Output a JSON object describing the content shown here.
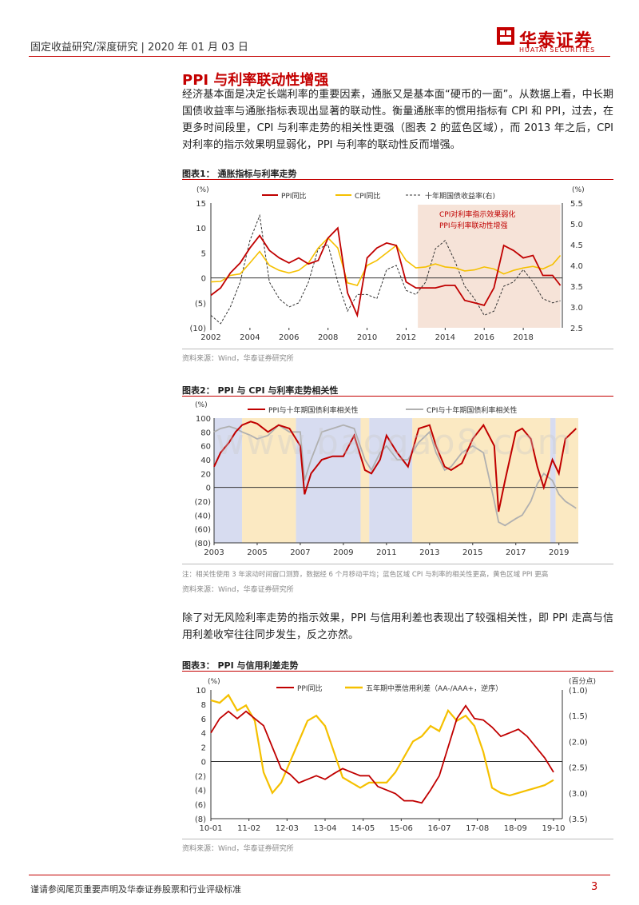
{
  "header": {
    "breadcrumb": "固定收益研究/深度研究 | 2020 年 01 月 03 日",
    "logo_cn": "华泰证券",
    "logo_en": "HUATAI SECURITIES"
  },
  "section": {
    "title": "PPI 与利率联动性增强",
    "para1": "经济基本面是决定长端利率的重要因素，通胀又是基本面“硬币的一面”。从数据上看，中长期国债收益率与通胀指标表现出显著的联动性。衡量通胀率的惯用指标有 CPI 和 PPI，过去，在更多时间段里，CPI 与利率走势的相关性更强（图表 2 的蓝色区域），而 2013 年之后，CPI 对利率的指示效果明显弱化，PPI 与利率的联动性反而增强。",
    "para2": "除了对无风险利率走势的指示效果，PPI 与信用利差也表现出了较强相关性，即 PPI 走高与信用利差收窄往往同步发生，反之亦然。"
  },
  "fig1": {
    "title": "图表1：   通胀指标与利率走势",
    "source": "资料来源：Wind，华泰证券研究所"
  },
  "fig2": {
    "title": "图表2：   PPI 与 CPI 与利率走势相关性",
    "note": "注：相关性使用 3 年滚动时间窗口测算，数据经 6 个月移动平均；蓝色区域 CPI 与利率的相关性更高，黄色区域 PPI 更高",
    "source": "资料来源：Wind，华泰证券研究所"
  },
  "fig3": {
    "title": "图表3：   PPI 与信用利差走势",
    "source": "资料来源：Wind，华泰证券研究所"
  },
  "footer": {
    "disclaimer": "谨请参阅尾页重要声明及华泰证券股票和行业评级标准",
    "page": "3"
  },
  "watermark": "www.baogao8.com",
  "colors": {
    "ppi": "#c00000",
    "cpi": "#f5c000",
    "bond": "#333333",
    "shade_warm": "#f6e3d8",
    "shade_blue": "#d7dcf0",
    "shade_yellow": "#fbe9c2",
    "accent": "#c40000"
  },
  "chart_data": [
    {
      "type": "line",
      "title": "通胀指标与利率走势",
      "left_unit": "(%)",
      "right_unit": "(%)",
      "x_ticks": [
        "2002",
        "2004",
        "2006",
        "2008",
        "2010",
        "2012",
        "2014",
        "2016",
        "2018"
      ],
      "left_ticks": [
        "15",
        "10",
        "5",
        "0",
        "(5)",
        "(10)"
      ],
      "right_ticks": [
        "5.5",
        "5.0",
        "4.5",
        "4.0",
        "3.5",
        "3.0",
        "2.5"
      ],
      "ylim_left": [
        -10,
        15
      ],
      "ylim_right": [
        2.5,
        5.5
      ],
      "annotation": [
        "CPI对利率指示效果弱化",
        "PPI与利率联动性增强"
      ],
      "series": [
        {
          "name": "PPI同比",
          "axis": "left",
          "x": [
            2002,
            2002.5,
            2003,
            2003.5,
            2004,
            2004.5,
            2005,
            2005.5,
            2006,
            2006.5,
            2007,
            2007.5,
            2008,
            2008.5,
            2009,
            2009.5,
            2010,
            2010.5,
            2011,
            2011.5,
            2012,
            2012.5,
            2013,
            2013.5,
            2014,
            2014.5,
            2015,
            2015.5,
            2016,
            2016.5,
            2017,
            2017.5,
            2018,
            2018.5,
            2019,
            2019.5,
            2019.9
          ],
          "values": [
            -3.5,
            -2,
            1,
            3,
            6,
            8.5,
            5.5,
            4,
            3,
            4,
            2.8,
            3.5,
            8,
            10,
            -3,
            -7.5,
            4,
            6,
            7,
            6.5,
            -0.8,
            -2,
            -2,
            -2,
            -1.5,
            -1.5,
            -4.5,
            -5,
            -5.5,
            -2,
            6.5,
            5.5,
            4,
            4.5,
            0.5,
            0.5,
            -1.5
          ]
        },
        {
          "name": "CPI同比",
          "axis": "left",
          "x": [
            2002,
            2002.5,
            2003,
            2003.5,
            2004,
            2004.5,
            2005,
            2005.5,
            2006,
            2006.5,
            2007,
            2007.5,
            2008,
            2008.5,
            2009,
            2009.5,
            2010,
            2010.5,
            2011,
            2011.5,
            2012,
            2012.5,
            2013,
            2013.5,
            2014,
            2014.5,
            2015,
            2015.5,
            2016,
            2016.5,
            2017,
            2017.5,
            2018,
            2018.5,
            2019,
            2019.5,
            2019.9
          ],
          "values": [
            -0.8,
            -0.7,
            0.5,
            0.8,
            3,
            5.3,
            2.5,
            1.5,
            1,
            1.5,
            3,
            6,
            8,
            6,
            -1,
            -1.5,
            2.5,
            3.5,
            5,
            6.5,
            3.5,
            2,
            2.2,
            2.8,
            2.2,
            2,
            1.4,
            1.6,
            2.2,
            1.8,
            0.8,
            1.5,
            2,
            2.3,
            1.8,
            2.7,
            4.5
          ]
        },
        {
          "name": "十年期国债收益率(右)",
          "axis": "right",
          "x": [
            2002,
            2002.5,
            2003,
            2003.5,
            2004,
            2004.5,
            2005,
            2005.5,
            2006,
            2006.5,
            2007,
            2007.5,
            2008,
            2008.5,
            2009,
            2009.5,
            2010,
            2010.5,
            2011,
            2011.5,
            2012,
            2012.5,
            2013,
            2013.5,
            2014,
            2014.5,
            2015,
            2015.5,
            2016,
            2016.5,
            2017,
            2017.5,
            2018,
            2018.5,
            2019,
            2019.5,
            2019.9
          ],
          "values": [
            2.8,
            2.6,
            3.0,
            3.6,
            4.6,
            5.2,
            3.6,
            3.2,
            3.0,
            3.1,
            3.6,
            4.4,
            4.5,
            3.6,
            2.9,
            3.3,
            3.3,
            3.2,
            3.9,
            4.0,
            3.4,
            3.3,
            3.6,
            4.4,
            4.6,
            4.1,
            3.5,
            3.2,
            2.8,
            2.9,
            3.5,
            3.6,
            3.9,
            3.6,
            3.2,
            3.1,
            3.15
          ]
        }
      ]
    },
    {
      "type": "line",
      "title": "PPI 与 CPI 与利率走势相关性",
      "left_unit": "(%)",
      "x_ticks": [
        "2003",
        "2005",
        "2007",
        "2009",
        "2011",
        "2013",
        "2015",
        "2017",
        "2019"
      ],
      "y_ticks": [
        "100",
        "80",
        "60",
        "40",
        "20",
        "0",
        "(20)",
        "(40)",
        "(60)",
        "(80)"
      ],
      "ylim": [
        -80,
        100
      ],
      "series": [
        {
          "name": "PPI与十年期国债利率相关性",
          "x": [
            2003,
            2003.3,
            2003.7,
            2004,
            2004.3,
            2004.7,
            2005,
            2005.5,
            2006,
            2006.5,
            2007,
            2007.2,
            2007.5,
            2008,
            2008.5,
            2009,
            2009.5,
            2010,
            2010.3,
            2010.7,
            2011,
            2011.5,
            2012,
            2012.5,
            2013,
            2013.3,
            2013.7,
            2014,
            2014.5,
            2015,
            2015.5,
            2016,
            2016.2,
            2016.5,
            2017,
            2017.3,
            2017.7,
            2018,
            2018.3,
            2018.7,
            2019,
            2019.3,
            2019.8
          ],
          "values": [
            30,
            50,
            65,
            80,
            90,
            95,
            92,
            80,
            90,
            85,
            60,
            -10,
            20,
            40,
            45,
            45,
            75,
            25,
            20,
            40,
            75,
            50,
            30,
            85,
            90,
            60,
            30,
            25,
            35,
            70,
            90,
            60,
            -35,
            10,
            80,
            85,
            70,
            30,
            0,
            40,
            20,
            70,
            85
          ]
        },
        {
          "name": "CPI与十年期国债利率相关性",
          "x": [
            2003,
            2003.3,
            2003.7,
            2004,
            2004.3,
            2004.7,
            2005,
            2005.5,
            2006,
            2006.5,
            2007,
            2007.2,
            2007.5,
            2008,
            2008.5,
            2009,
            2009.5,
            2010,
            2010.3,
            2010.7,
            2011,
            2011.5,
            2012,
            2012.5,
            2013,
            2013.3,
            2013.7,
            2014,
            2014.5,
            2015,
            2015.5,
            2016,
            2016.2,
            2016.5,
            2017,
            2017.3,
            2017.7,
            2018,
            2018.3,
            2018.7,
            2019,
            2019.3,
            2019.8
          ],
          "values": [
            80,
            85,
            88,
            85,
            80,
            75,
            70,
            75,
            90,
            80,
            80,
            10,
            40,
            80,
            85,
            90,
            85,
            40,
            25,
            50,
            60,
            40,
            40,
            65,
            80,
            50,
            25,
            30,
            50,
            60,
            50,
            -20,
            -50,
            -55,
            -45,
            -40,
            -20,
            5,
            20,
            10,
            -10,
            -20,
            -30
          ]
        }
      ],
      "shading": [
        {
          "from": 2003,
          "to": 2004.3,
          "color": "blue"
        },
        {
          "from": 2004.3,
          "to": 2006.8,
          "color": "yellow"
        },
        {
          "from": 2006.8,
          "to": 2009.8,
          "color": "blue"
        },
        {
          "from": 2009.8,
          "to": 2010.2,
          "color": "yellow"
        },
        {
          "from": 2010.2,
          "to": 2012.2,
          "color": "blue"
        },
        {
          "from": 2012.2,
          "to": 2018.6,
          "color": "yellow"
        },
        {
          "from": 2018.6,
          "to": 2018.85,
          "color": "blue"
        },
        {
          "from": 2018.85,
          "to": 2019.9,
          "color": "yellow"
        }
      ]
    },
    {
      "type": "line",
      "title": "PPI 与信用利差走势",
      "left_unit": "(%)",
      "right_unit": "(百分点)",
      "x_ticks": [
        "10-01",
        "11-02",
        "12-03",
        "13-04",
        "14-05",
        "15-06",
        "16-07",
        "17-08",
        "18-09",
        "19-10"
      ],
      "left_ticks": [
        "10",
        "8",
        "6",
        "4",
        "2",
        "0",
        "(2)",
        "(4)",
        "(6)",
        "(8)"
      ],
      "right_ticks": [
        "(1.0)",
        "(1.5)",
        "(2.0)",
        "(2.5)",
        "(3.0)",
        "(3.5)"
      ],
      "ylim_left": [
        -8,
        10
      ],
      "ylim_right": [
        -3.5,
        -1.0
      ],
      "series": [
        {
          "name": "PPI同比",
          "axis": "left",
          "x": [
            0,
            3,
            6,
            9,
            12,
            15,
            18,
            21,
            24,
            27,
            30,
            33,
            36,
            39,
            42,
            45,
            48,
            51,
            54,
            57,
            60,
            63,
            66,
            69,
            72,
            75,
            78,
            81,
            84,
            87,
            90,
            93,
            96,
            99,
            102,
            105,
            108,
            111,
            114,
            117
          ],
          "values": [
            4,
            6,
            7,
            6,
            7,
            6,
            5,
            2,
            -1,
            -1.8,
            -3,
            -2.5,
            -2,
            -2.5,
            -1.7,
            -1,
            -1.5,
            -2,
            -2,
            -3.5,
            -4,
            -4.5,
            -5.5,
            -5.5,
            -5.8,
            -4,
            -2,
            2,
            6,
            7.8,
            6,
            5.8,
            4.8,
            3.5,
            4,
            4.5,
            3.5,
            2,
            0.5,
            -1.5
          ]
        },
        {
          "name": "五年期中票信用利差（AA-/AAA+，逆序）",
          "axis": "right",
          "x": [
            0,
            3,
            6,
            9,
            12,
            15,
            18,
            21,
            24,
            27,
            30,
            33,
            36,
            39,
            42,
            45,
            48,
            51,
            54,
            57,
            60,
            63,
            66,
            69,
            72,
            75,
            78,
            81,
            84,
            87,
            90,
            93,
            96,
            99,
            102,
            105,
            108,
            111,
            114,
            117
          ],
          "values": [
            -1.2,
            -1.25,
            -1.1,
            -1.4,
            -1.3,
            -1.6,
            -2.6,
            -3.0,
            -2.8,
            -2.4,
            -2.0,
            -1.6,
            -1.5,
            -1.7,
            -2.2,
            -2.7,
            -2.8,
            -2.9,
            -2.8,
            -2.8,
            -2.8,
            -2.6,
            -2.3,
            -2.0,
            -1.9,
            -1.7,
            -1.8,
            -1.4,
            -1.6,
            -1.5,
            -1.7,
            -2.2,
            -2.9,
            -3.0,
            -3.05,
            -3.0,
            -2.95,
            -2.9,
            -2.85,
            -2.75
          ]
        }
      ]
    }
  ]
}
